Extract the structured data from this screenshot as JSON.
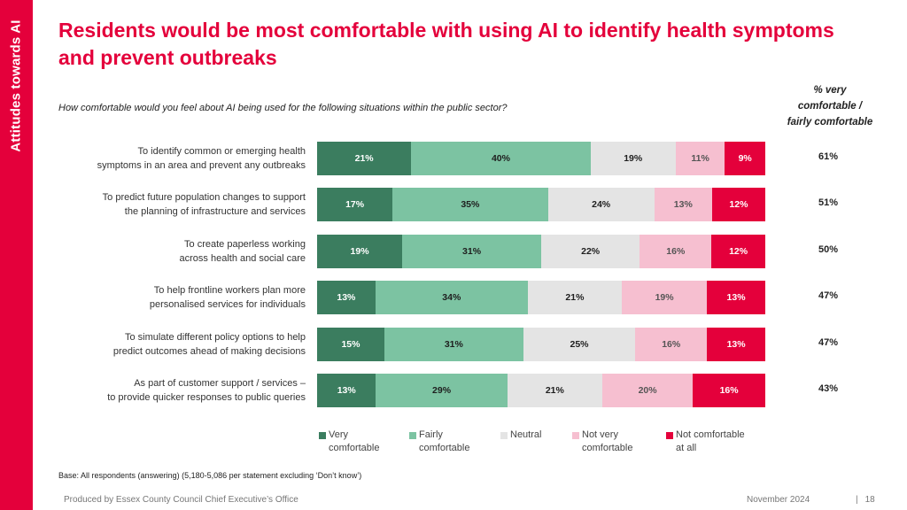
{
  "side_tab": "Attitudes towards AI",
  "title": "Residents would be most comfortable with using AI to identify health symptoms and prevent outbreaks",
  "question": "How comfortable would you feel about AI being used for the following situations within the public sector?",
  "pct_header": "% very\ncomfortable /\nfairly comfortable",
  "colors": {
    "very_comfortable": "#3b7d5f",
    "fairly_comfortable": "#7cc3a2",
    "neutral": "#e4e4e4",
    "not_very": "#f6bfd0",
    "not_comfortable": "#e4003b",
    "accent": "#e4003b"
  },
  "chart_data": {
    "type": "bar",
    "orientation": "horizontal",
    "stacked": true,
    "normalized": true,
    "categories": [
      "To identify common or emerging health\nsymptoms in an area and prevent any outbreaks",
      "To predict future population changes to support\nthe planning of infrastructure and services",
      "To create paperless working\nacross health and social care",
      "To help frontline workers plan more\npersonalised services for individuals",
      "To simulate different policy options to help\npredict outcomes ahead of making decisions",
      "As part of customer support / services –\nto provide quicker responses to public queries"
    ],
    "series": [
      {
        "name": "Very comfortable",
        "legend": "Very\ncomfortable",
        "key": "very_comfortable",
        "label_color": "#ffffff",
        "values": [
          21,
          17,
          19,
          13,
          15,
          13
        ],
        "labels": [
          "21%",
          "17%",
          "19%",
          "13%",
          "15%",
          "13%"
        ]
      },
      {
        "name": "Fairly comfortable",
        "legend": "Fairly\ncomfortable",
        "key": "fairly_comfortable",
        "label_color": "#1e1e1e",
        "values": [
          40,
          35,
          31,
          34,
          31,
          29
        ],
        "labels": [
          "40%",
          "35%",
          "31%",
          "34%",
          "31%",
          "29%"
        ]
      },
      {
        "name": "Neutral",
        "legend": "Neutral",
        "key": "neutral",
        "label_color": "#1e1e1e",
        "values": [
          19,
          24,
          22,
          21,
          25,
          21
        ],
        "labels": [
          "19%",
          "24%",
          "22%",
          "21%",
          "25%",
          "21%"
        ]
      },
      {
        "name": "Not very comfortable",
        "legend": "Not very\ncomfortable",
        "key": "not_very",
        "label_color": "#555555",
        "values": [
          11,
          13,
          16,
          19,
          16,
          20
        ],
        "labels": [
          "11%",
          "13%",
          "16%",
          "19%",
          "16%",
          "20%"
        ]
      },
      {
        "name": "Not comfortable at all",
        "legend": "Not comfortable\nat all",
        "key": "not_comfortable",
        "label_color": "#ffffff",
        "values": [
          9,
          12,
          12,
          13,
          13,
          16
        ],
        "labels": [
          "9%",
          "12%",
          "12%",
          "13%",
          "13%",
          "16%"
        ]
      }
    ],
    "totals": [
      "61%",
      "51%",
      "50%",
      "47%",
      "47%",
      "43%"
    ],
    "title": "Residents would be most comfortable with using AI to identify health symptoms and prevent outbreaks",
    "xlabel": "",
    "ylabel": "",
    "legend_position": "bottom"
  },
  "base_note": "Base: All respondents (answering) (5,180-5,086 per statement excluding ‘Don’t know’)",
  "footer": {
    "produced_by": "Produced by Essex County Council Chief Executive’s Office",
    "date": "November 2024",
    "separator": "|",
    "page": "18"
  }
}
